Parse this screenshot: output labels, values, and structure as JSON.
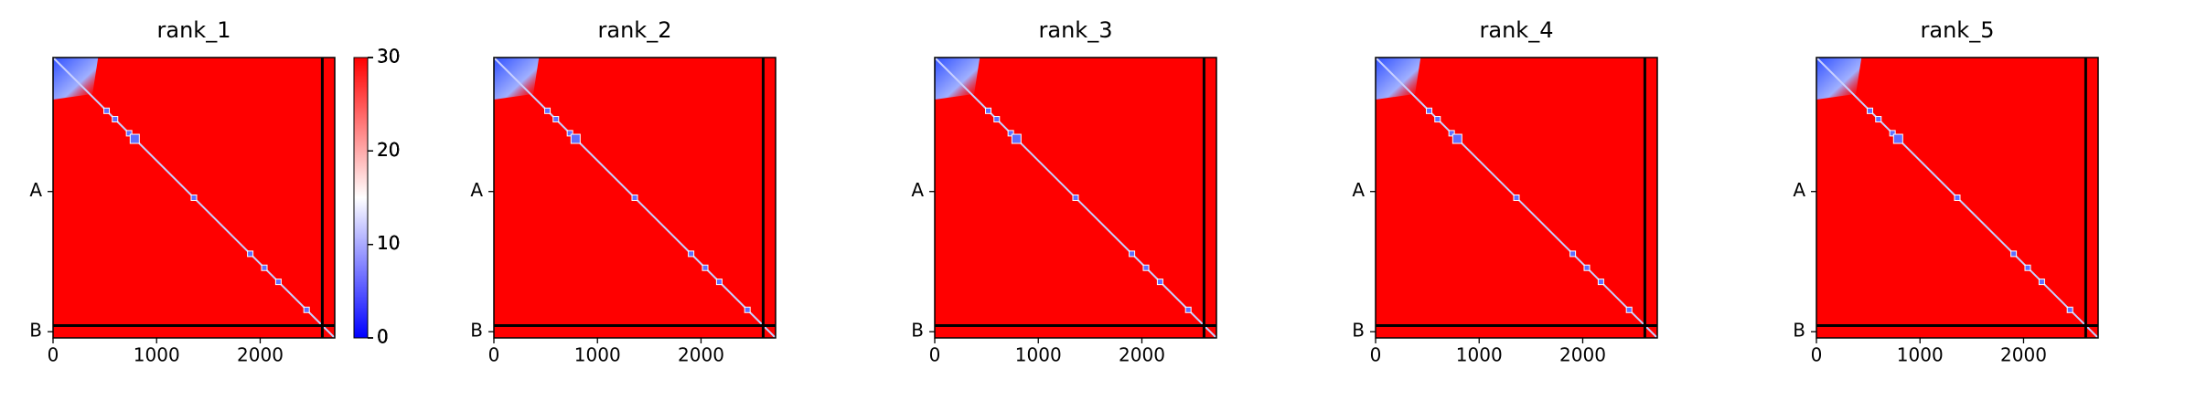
{
  "chart_data": [
    {
      "type": "heatmap",
      "title": "rank_1",
      "colormap": "bwr",
      "xlim": [
        0,
        2720
      ],
      "ylim": [
        2720,
        0
      ],
      "xticks": [
        0,
        1000,
        2000
      ],
      "yticks": [
        {
          "value": 1300,
          "label": "A"
        },
        {
          "value": 2660,
          "label": "B"
        }
      ],
      "boundary": 2600,
      "clim": [
        0,
        30
      ],
      "cticks": [
        0,
        10,
        20,
        30
      ]
    },
    {
      "type": "heatmap",
      "title": "rank_2",
      "colormap": "bwr",
      "xlim": [
        0,
        2720
      ],
      "ylim": [
        2720,
        0
      ],
      "xticks": [
        0,
        1000,
        2000
      ],
      "yticks": [
        {
          "value": 1300,
          "label": "A"
        },
        {
          "value": 2660,
          "label": "B"
        }
      ],
      "boundary": 2600,
      "clim": [
        0,
        30
      ],
      "cticks": [
        0,
        10,
        20,
        30
      ]
    },
    {
      "type": "heatmap",
      "title": "rank_3",
      "colormap": "bwr",
      "xlim": [
        0,
        2720
      ],
      "ylim": [
        2720,
        0
      ],
      "xticks": [
        0,
        1000,
        2000
      ],
      "yticks": [
        {
          "value": 1300,
          "label": "A"
        },
        {
          "value": 2660,
          "label": "B"
        }
      ],
      "boundary": 2600,
      "clim": [
        0,
        30
      ],
      "cticks": [
        0,
        10,
        20,
        30
      ]
    },
    {
      "type": "heatmap",
      "title": "rank_4",
      "colormap": "bwr",
      "xlim": [
        0,
        2720
      ],
      "ylim": [
        2720,
        0
      ],
      "xticks": [
        0,
        1000,
        2000
      ],
      "yticks": [
        {
          "value": 1300,
          "label": "A"
        },
        {
          "value": 2660,
          "label": "B"
        }
      ],
      "boundary": 2600,
      "clim": [
        0,
        30
      ],
      "cticks": [
        0,
        10,
        20,
        30
      ]
    },
    {
      "type": "heatmap",
      "title": "rank_5",
      "colormap": "bwr",
      "xlim": [
        0,
        2720
      ],
      "ylim": [
        2720,
        0
      ],
      "xticks": [
        0,
        1000,
        2000
      ],
      "yticks": [
        {
          "value": 1300,
          "label": "A"
        },
        {
          "value": 2660,
          "label": "B"
        }
      ],
      "boundary": 2600,
      "clim": [
        0,
        30
      ],
      "cticks": [
        0,
        10,
        20,
        30
      ]
    }
  ]
}
